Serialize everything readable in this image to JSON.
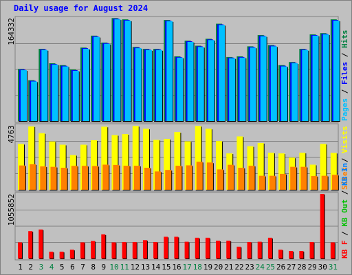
{
  "chart_data": [
    {
      "type": "bar",
      "panel": "hits-files-pages",
      "title": "Daily usage for August 2024",
      "ymax_label": "164332",
      "ylim": [
        0,
        164332
      ],
      "categories": [
        "1",
        "2",
        "3",
        "4",
        "5",
        "6",
        "7",
        "8",
        "9",
        "10",
        "11",
        "12",
        "13",
        "14",
        "15",
        "16",
        "17",
        "18",
        "19",
        "20",
        "21",
        "22",
        "23",
        "24",
        "25",
        "26",
        "27",
        "28",
        "29",
        "30",
        "31"
      ],
      "legend": [
        {
          "text": "Hits",
          "color": "#008040"
        },
        {
          "text": "Files",
          "color": "#0000ff"
        },
        {
          "text": "Pages",
          "color": "#00c0ff"
        }
      ],
      "series": [
        {
          "name": "Hits",
          "color": "#008040",
          "values": [
            83000,
            65000,
            115000,
            92000,
            89000,
            82000,
            117000,
            136000,
            125000,
            164000,
            162000,
            118000,
            115000,
            115000,
            161000,
            103000,
            128000,
            120000,
            131000,
            155000,
            102000,
            103000,
            119000,
            137000,
            121000,
            89000,
            94000,
            115000,
            138000,
            140000,
            162000
          ]
        },
        {
          "name": "Files",
          "color": "#0000ff",
          "values": [
            82000,
            64000,
            114000,
            91000,
            88000,
            81000,
            116000,
            135000,
            124000,
            163000,
            161000,
            117000,
            114000,
            114000,
            160000,
            102000,
            127000,
            119000,
            130000,
            154000,
            101000,
            102000,
            118000,
            136000,
            120000,
            88000,
            93000,
            114000,
            137000,
            139000,
            161000
          ]
        },
        {
          "name": "Pages",
          "color": "#00c0ff",
          "values": [
            81000,
            63000,
            113000,
            90000,
            87000,
            80000,
            115000,
            134000,
            123000,
            162000,
            160000,
            116000,
            113000,
            113000,
            159000,
            101000,
            126000,
            118000,
            129000,
            153000,
            100000,
            101000,
            117000,
            135000,
            119000,
            87000,
            92000,
            113000,
            136000,
            138000,
            160000
          ]
        }
      ]
    },
    {
      "type": "bar",
      "panel": "visits-sites",
      "ymax_label": "4763",
      "ylim": [
        0,
        4763
      ],
      "legend": [
        {
          "text": "Visits",
          "color": "#ffff00"
        },
        {
          "text": "Sites",
          "color": "#ff8000"
        }
      ],
      "series": [
        {
          "name": "Visits",
          "color": "#ffff00",
          "values": [
            3380,
            4670,
            4170,
            3560,
            3320,
            2560,
            3320,
            3650,
            4650,
            4030,
            4100,
            4700,
            4500,
            3680,
            3750,
            4250,
            3570,
            4700,
            4500,
            3590,
            2680,
            3930,
            3210,
            3450,
            2730,
            2680,
            2370,
            2730,
            1850,
            3380,
            2720
          ]
        },
        {
          "name": "Sites",
          "color": "#ff8000",
          "values": [
            1790,
            1880,
            1720,
            1690,
            1620,
            1760,
            1760,
            1750,
            1850,
            1830,
            1770,
            1770,
            1620,
            1350,
            1460,
            1770,
            1800,
            2060,
            2010,
            1500,
            1840,
            1620,
            1770,
            1030,
            1030,
            1170,
            1690,
            1690,
            1010,
            1030,
            1100
          ]
        }
      ]
    },
    {
      "type": "bar",
      "panel": "kbytes",
      "ymax_label": "1055852",
      "ylim": [
        0,
        1055852
      ],
      "legend": [
        {
          "text": "KB In",
          "color": "#0080ff"
        },
        {
          "text": "KB Out",
          "color": "#00c000"
        },
        {
          "text": "KB F",
          "color": "#ff0000"
        }
      ],
      "series": [
        {
          "name": "KB F",
          "color": "#ff0000",
          "values": [
            264000,
            447000,
            474000,
            111000,
            111000,
            144000,
            264000,
            286000,
            394000,
            264000,
            270000,
            270000,
            300000,
            270000,
            355000,
            355000,
            274000,
            339000,
            339000,
            291000,
            291000,
            193000,
            270000,
            274000,
            339000,
            144000,
            123000,
            123000,
            270000,
            1055852,
            264000
          ]
        }
      ]
    }
  ],
  "colors": {
    "background": "#c0c0c0",
    "frame": "#808080",
    "grid": "#808080",
    "title": "#0000ff",
    "weekday_label": "#000000",
    "weekend_label": "#008040"
  },
  "weekend_days": [
    "3",
    "4",
    "10",
    "11",
    "17",
    "18",
    "24",
    "25",
    "31"
  ]
}
